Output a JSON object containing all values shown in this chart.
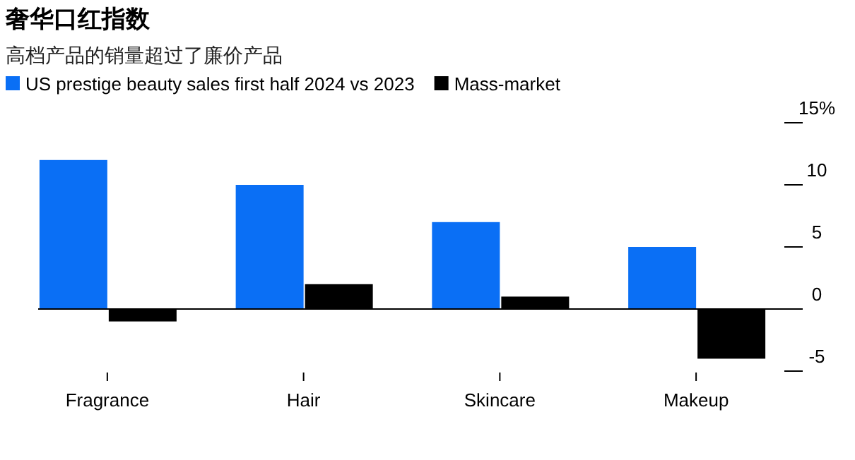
{
  "chart_data": {
    "type": "bar",
    "title": "奢华口红指数",
    "subtitle": "高档产品的销量超过了廉价产品",
    "categories": [
      "Fragrance",
      "Hair",
      "Skincare",
      "Makeup"
    ],
    "series": [
      {
        "name": "US prestige beauty sales first half 2024 vs 2023",
        "color": "#0a6ff5",
        "values": [
          12,
          10,
          7,
          5
        ]
      },
      {
        "name": "Mass-market",
        "color": "#000000",
        "values": [
          -1,
          2,
          1,
          -4
        ]
      }
    ],
    "ylim": [
      -5,
      15
    ],
    "yticks": [
      -5,
      0,
      5,
      10,
      {
        "value": 15,
        "label": "15%"
      }
    ],
    "legend": "top left"
  }
}
